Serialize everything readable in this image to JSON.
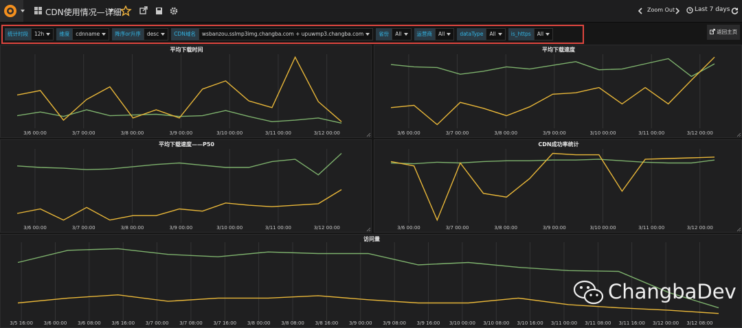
{
  "nav": {
    "title": "CDN使用情况—详细",
    "zoom_out": "Zoom Out",
    "time_range": "Last 7 days"
  },
  "variables": [
    {
      "label": "统计时段",
      "value": "12h"
    },
    {
      "label": "维度",
      "value": "cdnname"
    },
    {
      "label": "降序or升序",
      "value": "desc"
    },
    {
      "label": "CDN域名",
      "value": "wsbanzou.sslmp3img.changba.com + upuwmp3.changba.com"
    },
    {
      "label": "省份",
      "value": "All"
    },
    {
      "label": "运营商",
      "value": "All"
    },
    {
      "label": "dataType",
      "value": "All"
    },
    {
      "label": "is_https",
      "value": "All"
    }
  ],
  "home_button": "返回主页",
  "panels": [
    {
      "type": "line",
      "title": "平均下载时间",
      "ylim": [
        0,
        100
      ],
      "xticks": [
        "3/6 00:00",
        "3/7 00:00",
        "3/8 00:00",
        "3/9 00:00",
        "3/10 00:00",
        "3/11 00:00",
        "3/12 00:00"
      ],
      "series": [
        {
          "color": "#7eb26d",
          "values": [
            17,
            22,
            16,
            25,
            17,
            18,
            19,
            16,
            17,
            24,
            16,
            9,
            11,
            14,
            7
          ]
        },
        {
          "color": "#eab839",
          "values": [
            45,
            51,
            11,
            39,
            56,
            14,
            25,
            14,
            53,
            64,
            37,
            28,
            96,
            36,
            9
          ]
        }
      ]
    },
    {
      "type": "line",
      "title": "平均下载速度",
      "ylim": [
        0,
        100
      ],
      "xticks": [
        "3/6 00:00",
        "3/7 00:00",
        "3/8 00:00",
        "3/9 00:00",
        "3/10 00:00",
        "3/11 00:00",
        "3/12 00:00"
      ],
      "series": [
        {
          "color": "#7eb26d",
          "values": [
            86,
            83,
            82,
            73,
            77,
            83,
            80,
            85,
            90,
            79,
            80,
            87,
            94,
            70,
            87
          ]
        },
        {
          "color": "#eab839",
          "values": [
            28,
            31,
            5,
            35,
            27,
            17,
            29,
            46,
            48,
            55,
            33,
            55,
            33,
            65,
            96
          ]
        }
      ]
    },
    {
      "type": "line",
      "title": "平均下载速度——P50",
      "ylim": [
        0,
        100
      ],
      "xticks": [
        "3/6 00:00",
        "3/7 00:00",
        "3/8 00:00",
        "3/9 00:00",
        "3/10 00:00",
        "3/11 00:00",
        "3/12 00:00"
      ],
      "series": [
        {
          "color": "#7eb26d",
          "values": [
            77,
            75,
            74,
            72,
            73,
            76,
            79,
            81,
            78,
            75,
            75,
            83,
            86,
            65,
            94
          ]
        },
        {
          "color": "#eab839",
          "values": [
            13,
            19,
            4,
            21,
            4,
            10,
            10,
            19,
            16,
            27,
            24,
            22,
            24,
            26,
            45
          ]
        }
      ]
    },
    {
      "type": "line",
      "title": "CDN成功率统计",
      "ylim": [
        0,
        100
      ],
      "xticks": [
        "3/6 00:00",
        "3/7 00:00",
        "3/8 00:00",
        "3/9 00:00",
        "3/10 00:00",
        "3/11 00:00",
        "3/12 00:00"
      ],
      "series": [
        {
          "color": "#7eb26d",
          "values": [
            81,
            80,
            82,
            81,
            83,
            84,
            84,
            85,
            85,
            86,
            84,
            82,
            81,
            81,
            85
          ]
        },
        {
          "color": "#eab839",
          "values": [
            83,
            77,
            4,
            81,
            40,
            35,
            60,
            94,
            92,
            92,
            43,
            86,
            87,
            88,
            89
          ]
        }
      ]
    },
    {
      "type": "line",
      "title": "访问量",
      "ylim": [
        0,
        100
      ],
      "xticks": [
        "3/5 16:00",
        "3/6 00:00",
        "3/6 08:00",
        "3/6 16:00",
        "3/7 00:00",
        "3/7 08:00",
        "3/7 16:00",
        "3/8 00:00",
        "3/8 08:00",
        "3/8 16:00",
        "3/9 00:00",
        "3/9 08:00",
        "3/9 16:00",
        "3/10 00:00",
        "3/10 08:00",
        "3/10 16:00",
        "3/11 00:00",
        "3/11 08:00",
        "3/11 16:00",
        "3/12 00:00",
        "3/12 08:00"
      ],
      "series": [
        {
          "color": "#7eb26d",
          "values": [
            75,
            90,
            92,
            85,
            82,
            88,
            86,
            86,
            72,
            75,
            69,
            65,
            64,
            38,
            19
          ]
        },
        {
          "color": "#eab839",
          "values": [
            25,
            31,
            35,
            27,
            31,
            31,
            34,
            29,
            25,
            25,
            31,
            23,
            19,
            16,
            12
          ]
        }
      ]
    }
  ],
  "watermark": "ChangbaDev"
}
